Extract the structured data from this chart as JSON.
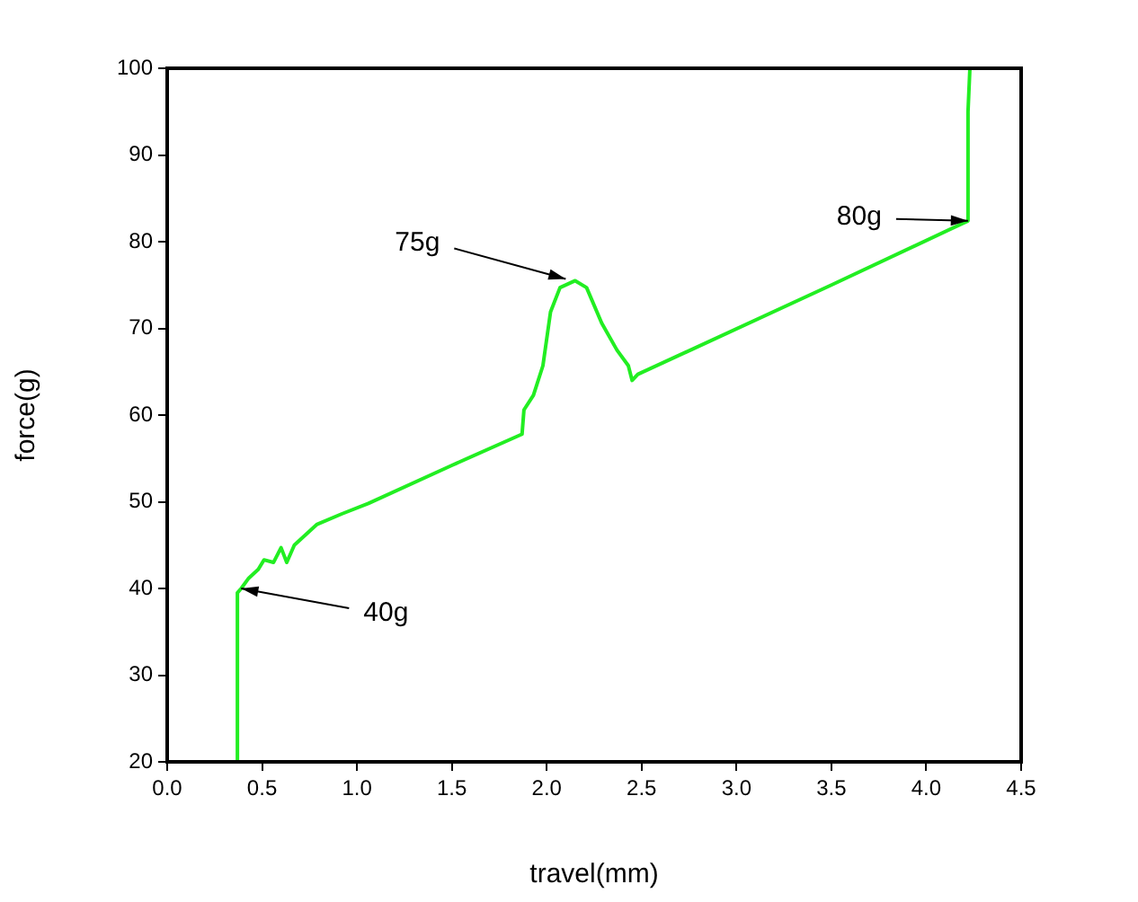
{
  "chart_data": {
    "type": "line",
    "xlabel": "travel(mm)",
    "ylabel": "force(g)",
    "series": [
      {
        "color": "#22ee22",
        "x": [
          0.37,
          0.37,
          0.39,
          0.43,
          0.48,
          0.51,
          0.56,
          0.6,
          0.63,
          0.67,
          0.79,
          0.92,
          1.06,
          1.5,
          1.87,
          1.88,
          1.93,
          1.98,
          2.02,
          2.07,
          2.15,
          2.21,
          2.29,
          2.37,
          2.43,
          2.45,
          2.48,
          3.5,
          4.22,
          4.22,
          4.23
        ],
        "values": [
          20,
          39.5,
          40,
          41.2,
          42.2,
          43.3,
          43,
          44.7,
          43,
          45,
          47.4,
          48.6,
          49.8,
          54.2,
          57.8,
          60.6,
          62.3,
          65.7,
          71.9,
          74.7,
          75.5,
          74.7,
          70.6,
          67.5,
          65.7,
          64,
          64.7,
          75,
          82.4,
          95,
          100
        ]
      }
    ],
    "xlim": [
      0,
      4.5
    ],
    "xticks": [
      {
        "value": 0,
        "label": "0.0"
      },
      {
        "value": 0.5,
        "label": "0.5"
      },
      {
        "value": 1,
        "label": "1.0"
      },
      {
        "value": 1.5,
        "label": "1.5"
      },
      {
        "value": 2,
        "label": "2.0"
      },
      {
        "value": 2.5,
        "label": "2.5"
      },
      {
        "value": 3,
        "label": "3.0"
      },
      {
        "value": 3.5,
        "label": "3.5"
      },
      {
        "value": 4,
        "label": "4.0"
      },
      {
        "value": 4.5,
        "label": "4.5"
      }
    ],
    "ylim": [
      20,
      100
    ],
    "yticks": [
      20,
      30,
      40,
      50,
      60,
      70,
      80,
      90,
      100
    ],
    "annotations": [
      {
        "text": "40g",
        "x": 0.39,
        "y": 40
      },
      {
        "text": "75g",
        "x": 2.1,
        "y": 75.7
      },
      {
        "text": "80g",
        "x": 4.22,
        "y": 82.4
      }
    ],
    "grid": false,
    "legend": false,
    "marker": "none",
    "line_style": "solid"
  }
}
